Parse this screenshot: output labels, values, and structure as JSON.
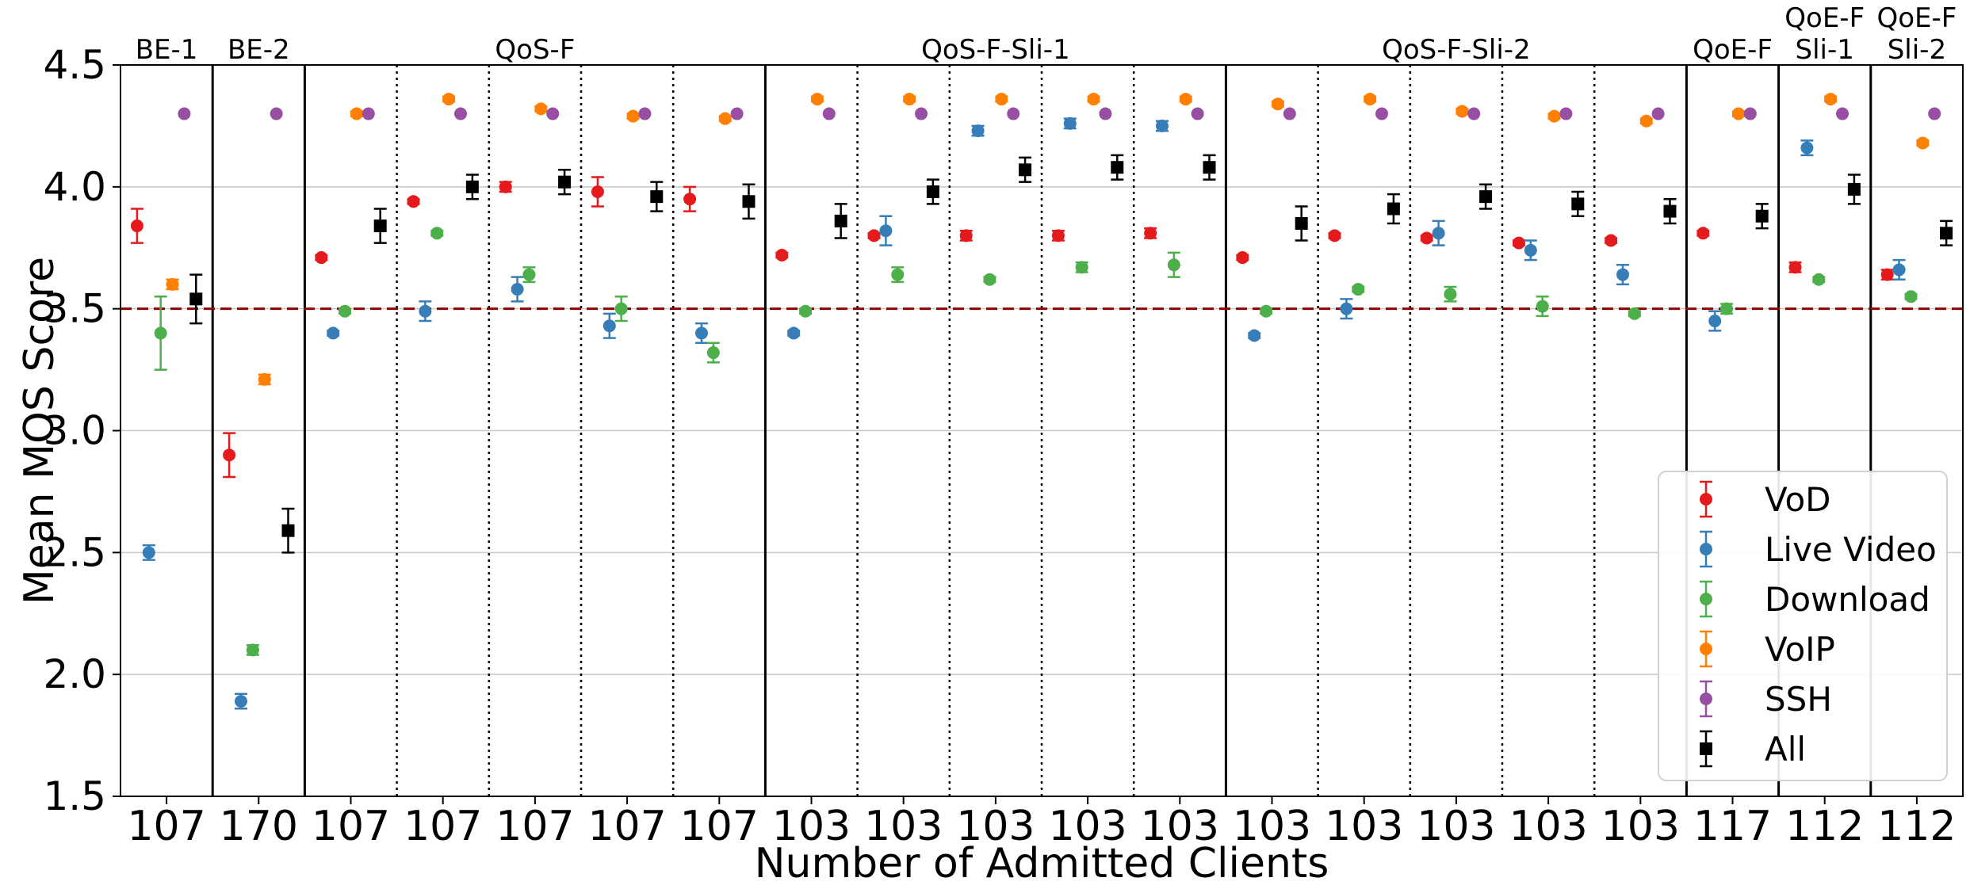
{
  "chart_data": {
    "type": "scatter",
    "title": "",
    "xlabel": "Number of Admitted Clients",
    "ylabel": "Mean MOS Score",
    "ylim": [
      1.5,
      4.5
    ],
    "yticks": [
      "1.5",
      "2.0",
      "2.5",
      "3.0",
      "3.5",
      "4.0",
      "4.5"
    ],
    "grid": "horizontal",
    "threshold": 3.5,
    "legend_position": "bottom-right",
    "groups": [
      {
        "label": [
          "BE-1"
        ],
        "span": [
          0,
          1
        ]
      },
      {
        "label": [
          "BE-2"
        ],
        "span": [
          1,
          2
        ]
      },
      {
        "label": [
          "QoS-F"
        ],
        "span": [
          2,
          7
        ]
      },
      {
        "label": [
          "QoS-F-Sli-1"
        ],
        "span": [
          7,
          12
        ]
      },
      {
        "label": [
          "QoS-F-Sli-2"
        ],
        "span": [
          12,
          17
        ]
      },
      {
        "label": [
          "QoE-F"
        ],
        "span": [
          17,
          18
        ]
      },
      {
        "label": [
          "QoE-F",
          "Sli-1"
        ],
        "span": [
          18,
          19
        ]
      },
      {
        "label": [
          "QoE-F",
          "Sli-2"
        ],
        "span": [
          19,
          20
        ]
      }
    ],
    "panel_labels": [
      "107",
      "170",
      "107",
      "107",
      "107",
      "107",
      "107",
      "103",
      "103",
      "103",
      "103",
      "103",
      "103",
      "103",
      "103",
      "103",
      "103",
      "117",
      "112",
      "112"
    ],
    "series": [
      {
        "name": "VoD",
        "color": "#e41a1c",
        "marker": "circle",
        "values": [
          3.84,
          2.9,
          3.71,
          3.94,
          4.0,
          3.98,
          3.95,
          3.72,
          3.8,
          3.8,
          3.8,
          3.81,
          3.71,
          3.8,
          3.79,
          3.77,
          3.78,
          3.81,
          3.67,
          3.64
        ],
        "err": [
          0.07,
          0.09,
          0.01,
          0.01,
          0.02,
          0.06,
          0.05,
          0.01,
          0.01,
          0.02,
          0.02,
          0.02,
          0.01,
          0.01,
          0.01,
          0.01,
          0.01,
          0.01,
          0.02,
          0.02
        ]
      },
      {
        "name": "Live Video",
        "color": "#377eb8",
        "marker": "circle",
        "values": [
          2.5,
          1.89,
          3.4,
          3.49,
          3.58,
          3.43,
          3.4,
          3.4,
          3.82,
          4.23,
          4.26,
          4.25,
          3.39,
          3.5,
          3.81,
          3.74,
          3.64,
          3.45,
          4.16,
          3.66
        ],
        "err": [
          0.03,
          0.03,
          0.01,
          0.04,
          0.05,
          0.05,
          0.04,
          0.01,
          0.06,
          0.02,
          0.02,
          0.02,
          0.01,
          0.04,
          0.05,
          0.04,
          0.04,
          0.04,
          0.03,
          0.04
        ]
      },
      {
        "name": "Download",
        "color": "#4daf4a",
        "marker": "circle",
        "values": [
          3.4,
          2.1,
          3.49,
          3.81,
          3.64,
          3.5,
          3.32,
          3.49,
          3.64,
          3.62,
          3.67,
          3.68,
          3.49,
          3.58,
          3.56,
          3.51,
          3.48,
          3.5,
          3.62,
          3.55
        ],
        "err": [
          0.15,
          0.02,
          0.01,
          0.01,
          0.03,
          0.05,
          0.04,
          0.01,
          0.03,
          0.01,
          0.02,
          0.05,
          0.01,
          0.01,
          0.03,
          0.04,
          0.01,
          0.02,
          0.01,
          0.01
        ]
      },
      {
        "name": "VoIP",
        "color": "#ff7f00",
        "marker": "circle",
        "values": [
          3.6,
          3.21,
          4.3,
          4.36,
          4.32,
          4.29,
          4.28,
          4.36,
          4.36,
          4.36,
          4.36,
          4.36,
          4.34,
          4.36,
          4.31,
          4.29,
          4.27,
          4.3,
          4.36,
          4.18
        ],
        "err": [
          0.02,
          0.02,
          0.01,
          0.01,
          0.01,
          0.01,
          0.01,
          0.01,
          0.01,
          0.01,
          0.01,
          0.01,
          0.01,
          0.01,
          0.01,
          0.01,
          0.01,
          0.01,
          0.01,
          0.01
        ]
      },
      {
        "name": "SSH",
        "color": "#984ea3",
        "marker": "circle",
        "values": [
          4.3,
          4.3,
          4.3,
          4.3,
          4.3,
          4.3,
          4.3,
          4.3,
          4.3,
          4.3,
          4.3,
          4.3,
          4.3,
          4.3,
          4.3,
          4.3,
          4.3,
          4.3,
          4.3,
          4.3
        ],
        "err": [
          0,
          0,
          0,
          0,
          0,
          0,
          0,
          0,
          0,
          0,
          0,
          0,
          0,
          0,
          0,
          0,
          0,
          0,
          0,
          0
        ]
      },
      {
        "name": "All",
        "color": "#000000",
        "marker": "square",
        "values": [
          3.54,
          2.59,
          3.84,
          4.0,
          4.02,
          3.96,
          3.94,
          3.86,
          3.98,
          4.07,
          4.08,
          4.08,
          3.85,
          3.91,
          3.96,
          3.93,
          3.9,
          3.88,
          3.99,
          3.81
        ],
        "err": [
          0.1,
          0.09,
          0.07,
          0.05,
          0.05,
          0.06,
          0.07,
          0.07,
          0.05,
          0.05,
          0.05,
          0.05,
          0.07,
          0.06,
          0.05,
          0.05,
          0.05,
          0.05,
          0.06,
          0.05
        ]
      }
    ]
  }
}
